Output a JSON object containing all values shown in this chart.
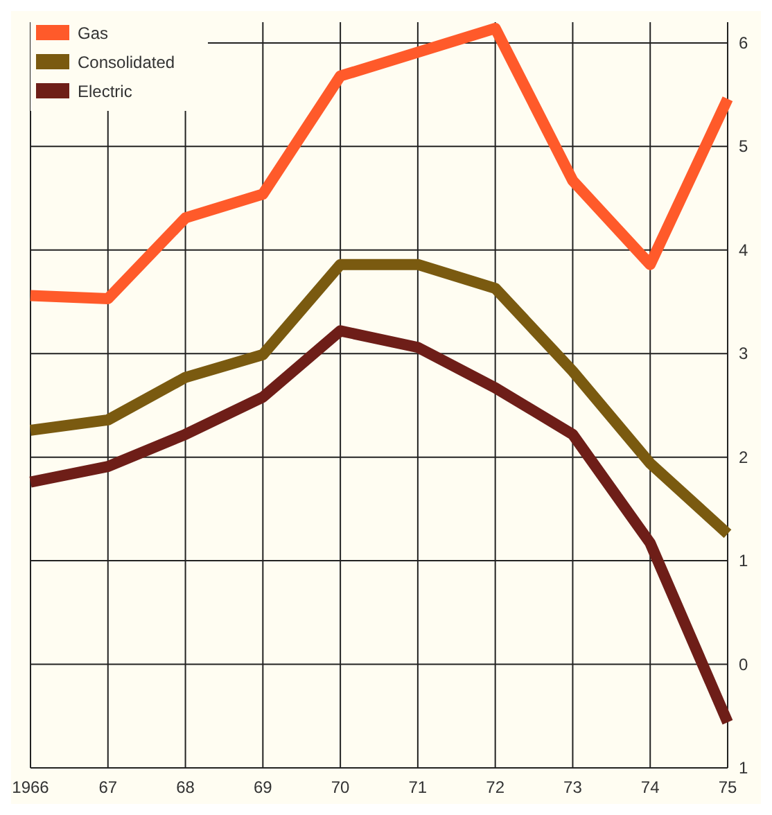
{
  "chart_data": {
    "type": "line",
    "x": [
      1966,
      1967,
      1968,
      1969,
      1970,
      1971,
      1972,
      1973,
      1974,
      1975
    ],
    "series": [
      {
        "name": "Gas",
        "color": "#ff5a2a",
        "values": [
          3.56,
          3.53,
          4.31,
          4.54,
          5.68,
          5.91,
          6.14,
          4.67,
          3.86,
          5.46
        ]
      },
      {
        "name": "Consolidated",
        "color": "#7a5a10",
        "values": [
          2.26,
          2.36,
          2.77,
          2.99,
          3.86,
          3.86,
          3.63,
          2.83,
          1.94,
          1.26
        ]
      },
      {
        "name": "Electric",
        "color": "#6e1e18",
        "values": [
          1.76,
          1.91,
          2.22,
          2.58,
          3.22,
          3.06,
          2.67,
          2.22,
          1.17,
          -0.56
        ]
      }
    ],
    "xlim": [
      1966,
      1975
    ],
    "xticks": [
      {
        "value": 1966,
        "label": "1966"
      },
      {
        "value": 1967,
        "label": "67"
      },
      {
        "value": 1968,
        "label": "68"
      },
      {
        "value": 1969,
        "label": "69"
      },
      {
        "value": 1970,
        "label": "70"
      },
      {
        "value": 1971,
        "label": "71"
      },
      {
        "value": 1972,
        "label": "72"
      },
      {
        "value": 1973,
        "label": "73"
      },
      {
        "value": 1974,
        "label": "74"
      },
      {
        "value": 1975,
        "label": "75"
      }
    ],
    "ylim": [
      -1,
      6.2
    ],
    "yticks": [
      {
        "value": -1,
        "label": "1"
      },
      0,
      1,
      2,
      3,
      4,
      5,
      6
    ],
    "grid": true,
    "legend": "top left",
    "marker": "none",
    "line_style": "solid"
  }
}
